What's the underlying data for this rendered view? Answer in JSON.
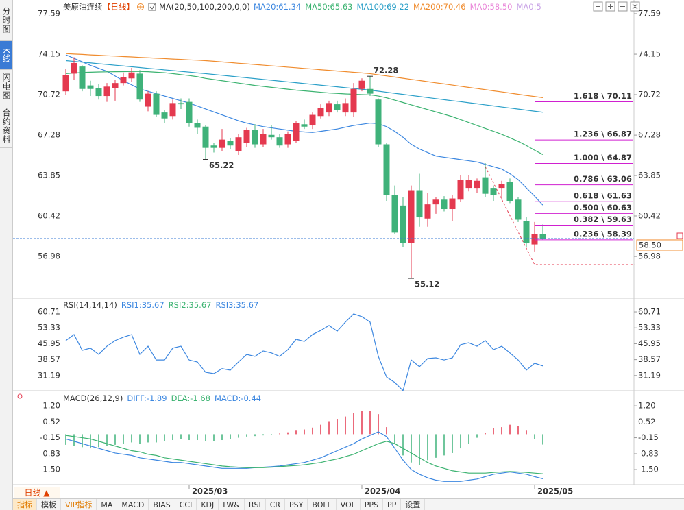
{
  "sidebar": [
    "分时图",
    "K线图",
    "闪电图",
    "合约资料"
  ],
  "header": {
    "symbol": "美原油连续",
    "period": "【日线】",
    "indicator": "MA(20,50,100,200,0,0)"
  },
  "toolbar": {
    "period_button": "日线 ▲",
    "tabs": [
      "指标",
      "模板",
      "VIP指标",
      "MA",
      "MACD",
      "BIAS",
      "CCI",
      "KDJ",
      "LW&",
      "RSI",
      "CR",
      "PSY",
      "BOLL",
      "VOL",
      "PPS",
      "PP",
      "设置"
    ]
  },
  "chart_data": [
    {
      "type": "candlestick",
      "categories": [
        null,
        null,
        null,
        null,
        null,
        null,
        null,
        null,
        null,
        null,
        null,
        null,
        null,
        null,
        null,
        "2025/03",
        null,
        null,
        null,
        null,
        null,
        null,
        null,
        null,
        null,
        null,
        null,
        null,
        null,
        null,
        null,
        null,
        null,
        null,
        null,
        null,
        "2025/04",
        null,
        null,
        null,
        null,
        null,
        null,
        null,
        null,
        null,
        null,
        null,
        null,
        null,
        null,
        null,
        null,
        null,
        null,
        null,
        null,
        "2025/05",
        null
      ],
      "open": [
        71.0,
        72.5,
        73.1,
        71.5,
        71.3,
        70.6,
        71.3,
        71.7,
        72.1,
        72.5,
        69.7,
        70.8,
        69.2,
        68.9,
        70.0,
        70.1,
        68.3,
        68.0,
        66.4,
        66.2,
        66.8,
        65.9,
        66.6,
        67.7,
        66.5,
        67.3,
        67.1,
        66.5,
        66.8,
        68.2,
        68.1,
        68.9,
        69.2,
        69.9,
        69.2,
        69.2,
        71.2,
        71.2,
        70.3,
        66.5,
        62.2,
        61.3,
        58.1,
        62.6,
        60.2,
        61.4,
        61.8,
        61.0,
        61.8,
        62.8,
        62.8,
        63.7,
        62.8,
        62.8,
        63.3,
        61.8,
        60.0,
        58.0,
        58.9
      ],
      "high": [
        72.9,
        73.9,
        73.2,
        71.9,
        71.6,
        71.7,
        72.0,
        72.6,
        73.0,
        72.8,
        71.0,
        71.0,
        69.4,
        70.3,
        70.4,
        70.4,
        68.6,
        68.1,
        66.6,
        67.8,
        67.0,
        67.4,
        67.9,
        68.2,
        67.8,
        68.1,
        67.4,
        67.6,
        68.5,
        68.6,
        69.2,
        69.9,
        70.2,
        70.2,
        70.4,
        71.7,
        72.1,
        72.28,
        70.4,
        66.6,
        63.0,
        62.0,
        63.0,
        64.0,
        62.4,
        62.0,
        62.1,
        62.2,
        63.9,
        63.9,
        63.6,
        64.9,
        63.0,
        63.4,
        63.6,
        62.0,
        60.3,
        59.9,
        59.7
      ],
      "low": [
        70.7,
        72.0,
        71.0,
        70.6,
        70.3,
        70.1,
        70.2,
        71.5,
        71.8,
        70.1,
        69.3,
        68.8,
        68.3,
        68.6,
        69.5,
        68.0,
        67.4,
        65.22,
        65.8,
        65.9,
        66.1,
        65.6,
        66.3,
        66.2,
        66.3,
        66.9,
        66.2,
        66.2,
        66.6,
        67.8,
        67.8,
        68.7,
        68.9,
        69.2,
        68.9,
        68.8,
        71.0,
        70.6,
        66.3,
        61.7,
        58.9,
        57.8,
        55.12,
        59.5,
        59.5,
        60.6,
        60.8,
        60.0,
        61.6,
        62.5,
        62.4,
        62.0,
        61.7,
        61.8,
        61.5,
        59.9,
        57.8,
        57.4,
        58.4
      ],
      "close": [
        72.4,
        73.4,
        71.2,
        71.2,
        70.6,
        71.4,
        71.7,
        72.2,
        72.6,
        70.3,
        70.8,
        69.0,
        68.7,
        70.0,
        69.9,
        68.3,
        67.9,
        66.2,
        66.2,
        66.9,
        66.4,
        67.1,
        67.7,
        66.5,
        67.4,
        67.1,
        66.4,
        67.4,
        68.3,
        68.0,
        69.0,
        69.6,
        70.0,
        69.4,
        70.0,
        71.2,
        71.9,
        70.8,
        66.5,
        62.2,
        59.0,
        58.1,
        62.6,
        60.3,
        61.4,
        61.8,
        61.0,
        61.9,
        63.5,
        63.5,
        63.4,
        62.3,
        62.2,
        63.1,
        61.7,
        60.1,
        58.1,
        58.9,
        58.5
      ],
      "up_color": "#e4394f",
      "down_color": "#3fb27a",
      "ylim": [
        53.61,
        78.46
      ],
      "yticks": [
        77.59,
        74.15,
        70.72,
        67.28,
        63.85,
        60.42,
        56.98
      ],
      "series": [
        {
          "name": "MA20:61.34",
          "color": "#3c87e0",
          "values": [
            74.1,
            73.8,
            73.5,
            73.2,
            72.95,
            72.7,
            72.3,
            71.9,
            71.55,
            71.2,
            71.0,
            70.8,
            70.6,
            70.4,
            70.2,
            70.0,
            69.75,
            69.5,
            69.25,
            69.0,
            68.75,
            68.5,
            68.3,
            68.15,
            68.0,
            67.9,
            67.8,
            67.7,
            67.6,
            67.55,
            67.5,
            67.6,
            67.7,
            67.8,
            67.95,
            68.1,
            68.2,
            68.3,
            68.25,
            68.0,
            67.6,
            67.1,
            66.5,
            66.1,
            65.8,
            65.5,
            65.4,
            65.3,
            65.2,
            65.1,
            65.0,
            64.8,
            64.6,
            64.4,
            64.0,
            63.5,
            62.8,
            62.1,
            61.34
          ]
        },
        {
          "name": "MA50:65.63",
          "color": "#3cb371",
          "values": [
            72.5,
            72.55,
            72.6,
            72.62,
            72.64,
            72.65,
            72.66,
            72.67,
            72.68,
            72.68,
            72.66,
            72.62,
            72.58,
            72.5,
            72.42,
            72.34,
            72.24,
            72.1,
            72.0,
            71.9,
            71.8,
            71.7,
            71.6,
            71.5,
            71.42,
            71.34,
            71.26,
            71.18,
            71.1,
            71.04,
            70.98,
            70.92,
            70.86,
            70.82,
            70.78,
            70.75,
            70.72,
            70.7,
            70.6,
            70.45,
            70.25,
            70.05,
            69.85,
            69.65,
            69.45,
            69.25,
            69.05,
            68.85,
            68.6,
            68.35,
            68.1,
            67.85,
            67.6,
            67.35,
            67.05,
            66.75,
            66.4,
            66.0,
            65.63
          ]
        },
        {
          "name": "MA100:69.22",
          "color": "#2a9fc8",
          "values": [
            73.6,
            73.54,
            73.47,
            73.41,
            73.34,
            73.28,
            73.21,
            73.15,
            73.08,
            73.02,
            72.95,
            72.89,
            72.82,
            72.76,
            72.69,
            72.63,
            72.56,
            72.5,
            72.43,
            72.36,
            72.29,
            72.22,
            72.15,
            72.08,
            72.01,
            71.94,
            71.87,
            71.8,
            71.73,
            71.66,
            71.59,
            71.52,
            71.45,
            71.38,
            71.31,
            71.24,
            71.17,
            71.1,
            71.01,
            70.92,
            70.83,
            70.74,
            70.65,
            70.56,
            70.47,
            70.38,
            70.29,
            70.2,
            70.12,
            70.03,
            69.94,
            69.85,
            69.76,
            69.67,
            69.58,
            69.49,
            69.4,
            69.31,
            69.22
          ]
        },
        {
          "name": "MA200:70.46",
          "color": "#f08c2e",
          "values": [
            74.2,
            74.16,
            74.13,
            74.09,
            74.06,
            74.02,
            73.99,
            73.95,
            73.92,
            73.88,
            73.85,
            73.81,
            73.78,
            73.74,
            73.71,
            73.67,
            73.64,
            73.6,
            73.55,
            73.49,
            73.44,
            73.38,
            73.33,
            73.27,
            73.22,
            73.16,
            73.11,
            73.05,
            73.0,
            72.94,
            72.89,
            72.83,
            72.78,
            72.72,
            72.67,
            72.61,
            72.56,
            72.5,
            72.4,
            72.31,
            72.21,
            72.11,
            72.01,
            71.92,
            71.82,
            71.72,
            71.63,
            71.53,
            71.43,
            71.33,
            71.24,
            71.14,
            71.04,
            70.95,
            70.85,
            70.75,
            70.65,
            70.56,
            70.46
          ]
        }
      ],
      "legend_only": [
        {
          "name": "MA0:58.50",
          "color": "#e986d8"
        },
        {
          "name": "MA0:5",
          "color": "#c9a3e6"
        }
      ],
      "annotations": [
        {
          "index": 37,
          "value": 72.28,
          "color": "#e4394f"
        },
        {
          "index": 17,
          "value": 65.22,
          "color": "#3fb27a"
        },
        {
          "index": 42,
          "value": 55.12,
          "color": "#3fb27a"
        }
      ],
      "fib_color": "#d020d0",
      "fib_levels": [
        {
          "value": 70.11,
          "label": "1.618 \\ 70.11"
        },
        {
          "value": 66.87,
          "label": "1.236 \\ 66.87"
        },
        {
          "value": 64.87,
          "label": "1.000 \\ 64.87"
        },
        {
          "value": 63.06,
          "label": "0.786 \\ 63.06"
        },
        {
          "value": 61.63,
          "label": "0.618 \\ 61.63"
        },
        {
          "value": 60.63,
          "label": "0.500 \\ 60.63"
        },
        {
          "value": 59.63,
          "label": "0.382 \\ 59.63"
        },
        {
          "value": 58.39,
          "label": "0.236 \\ 58.39"
        }
      ],
      "last_price": {
        "value": 58.5,
        "label": "58.50"
      }
    },
    {
      "type": "line",
      "title": "RSI(14,14,14)",
      "ylim": [
        23.5,
        63.9
      ],
      "yticks": [
        60.71,
        53.33,
        45.95,
        38.57,
        31.19
      ],
      "series": [
        {
          "name": "RSI1:35.67",
          "color": "#3c87e0",
          "values": [
            47.4,
            50.2,
            42.9,
            43.9,
            41.0,
            44.8,
            47.4,
            49.0,
            50.2,
            41.0,
            44.8,
            38.4,
            38.4,
            43.9,
            44.8,
            38.4,
            37.5,
            32.7,
            32.1,
            34.4,
            33.7,
            37.5,
            41.0,
            40.1,
            42.6,
            41.7,
            40.1,
            43.2,
            48.0,
            47.0,
            50.2,
            52.1,
            54.4,
            51.8,
            56.0,
            59.8,
            58.5,
            56.0,
            40.1,
            30.5,
            28.0,
            24.2,
            38.4,
            35.3,
            39.1,
            39.4,
            38.4,
            39.4,
            45.5,
            46.4,
            44.8,
            47.4,
            43.2,
            44.8,
            41.7,
            38.4,
            33.7,
            36.9,
            35.67
          ]
        }
      ],
      "legend_only": [
        {
          "name": "RSI2:35.67",
          "color": "#3cb371"
        },
        {
          "name": "RSI3:35.67",
          "color": "#3c87e0"
        }
      ]
    },
    {
      "type": "macd",
      "title": "MACD(26,12,9)",
      "ylim": [
        -2.08,
        1.61
      ],
      "yticks": [
        {
          "value": 1.2,
          "label": "1.20"
        },
        0.52,
        -0.15,
        -0.83,
        {
          "value": -1.5,
          "label": "-1.50"
        }
      ],
      "up_color": "#e4394f",
      "down_color": "#3fb27a",
      "series": [
        {
          "name": "DIFF:-1.89",
          "color": "#3c87e0",
          "values": [
            -0.2,
            -0.3,
            -0.4,
            -0.5,
            -0.6,
            -0.7,
            -0.8,
            -0.85,
            -0.9,
            -1.0,
            -1.05,
            -1.1,
            -1.15,
            -1.2,
            -1.2,
            -1.25,
            -1.3,
            -1.35,
            -1.4,
            -1.45,
            -1.45,
            -1.45,
            -1.45,
            -1.42,
            -1.4,
            -1.38,
            -1.35,
            -1.3,
            -1.25,
            -1.2,
            -1.1,
            -1.0,
            -0.85,
            -0.7,
            -0.55,
            -0.4,
            -0.2,
            -0.05,
            0.1,
            -0.1,
            -0.6,
            -1.1,
            -1.5,
            -1.7,
            -1.85,
            -1.95,
            -2.0,
            -2.0,
            -2.0,
            -1.95,
            -1.9,
            -1.8,
            -1.7,
            -1.65,
            -1.6,
            -1.65,
            -1.7,
            -1.8,
            -1.89
          ]
        },
        {
          "name": "DEA:-1.68",
          "color": "#3cb371",
          "values": [
            -0.05,
            -0.1,
            -0.15,
            -0.2,
            -0.3,
            -0.4,
            -0.5,
            -0.6,
            -0.7,
            -0.75,
            -0.85,
            -0.9,
            -1.0,
            -1.05,
            -1.1,
            -1.15,
            -1.2,
            -1.25,
            -1.3,
            -1.35,
            -1.38,
            -1.4,
            -1.42,
            -1.42,
            -1.42,
            -1.4,
            -1.38,
            -1.35,
            -1.33,
            -1.3,
            -1.25,
            -1.2,
            -1.12,
            -1.05,
            -0.95,
            -0.85,
            -0.7,
            -0.55,
            -0.4,
            -0.3,
            -0.4,
            -0.6,
            -0.8,
            -1.0,
            -1.2,
            -1.35,
            -1.45,
            -1.55,
            -1.6,
            -1.65,
            -1.65,
            -1.65,
            -1.62,
            -1.6,
            -1.58,
            -1.6,
            -1.62,
            -1.65,
            -1.68
          ]
        }
      ],
      "histogram": {
        "name": "MACD:-0.44",
        "color": "#3c87e0",
        "values": [
          -0.45,
          -0.5,
          -0.55,
          -0.6,
          -0.55,
          -0.5,
          -0.45,
          -0.4,
          -0.35,
          -0.4,
          -0.35,
          -0.35,
          -0.3,
          -0.25,
          -0.2,
          -0.25,
          -0.25,
          -0.3,
          -0.3,
          -0.25,
          -0.2,
          -0.15,
          -0.1,
          -0.08,
          -0.05,
          -0.03,
          0.03,
          0.08,
          0.15,
          0.2,
          0.28,
          0.4,
          0.55,
          0.65,
          0.75,
          0.9,
          1.0,
          1.0,
          0.85,
          0.3,
          -0.4,
          -0.9,
          -1.2,
          -1.3,
          -1.1,
          -1.0,
          -0.9,
          -0.8,
          -0.6,
          -0.4,
          -0.15,
          0.05,
          0.25,
          0.3,
          0.4,
          0.35,
          0.15,
          -0.2,
          -0.44
        ]
      }
    }
  ]
}
